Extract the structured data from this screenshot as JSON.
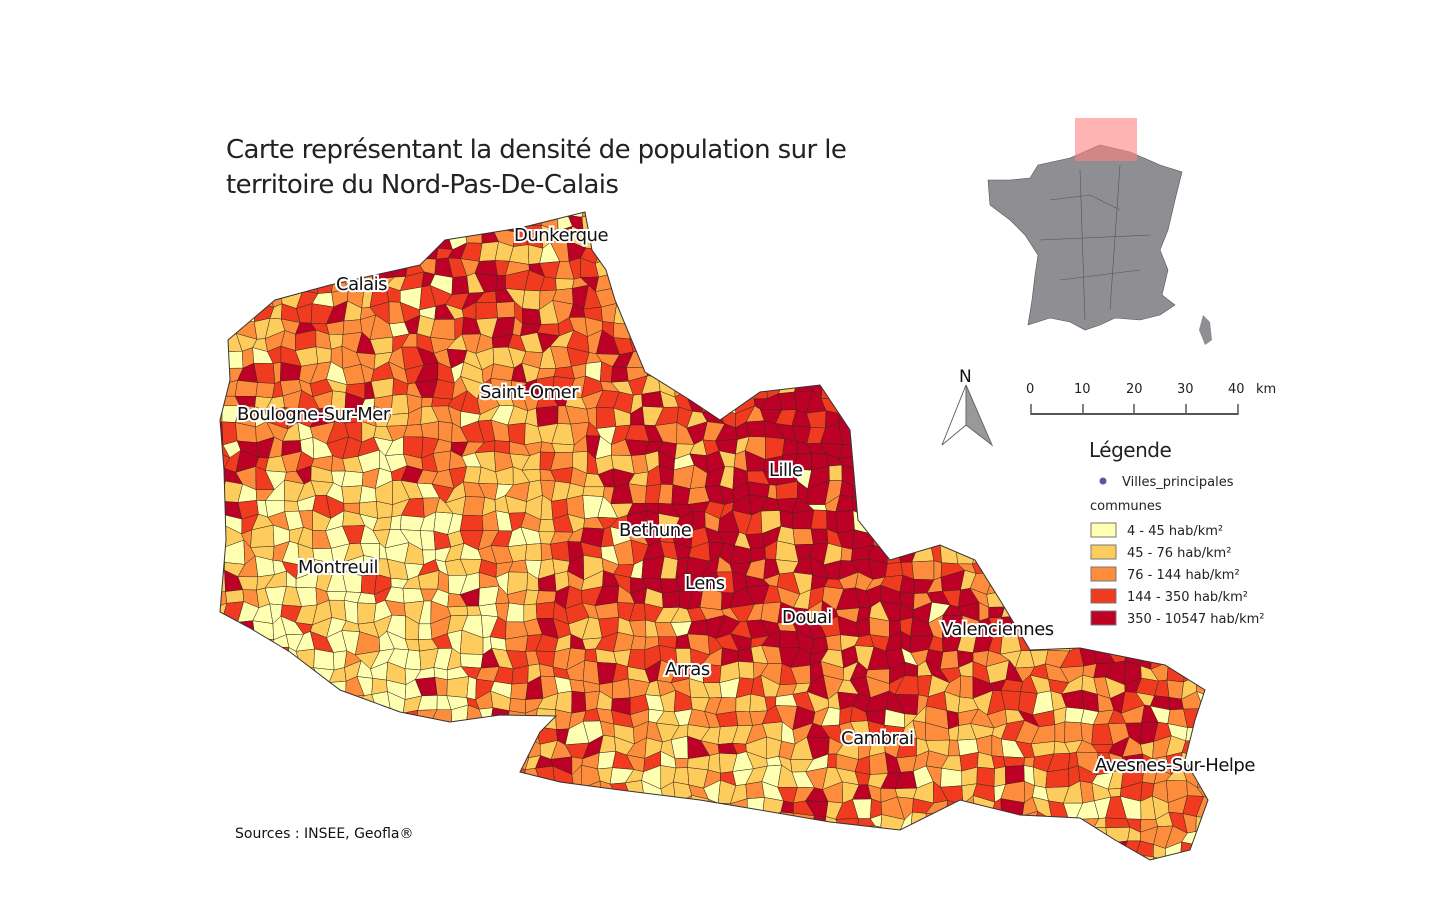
{
  "title": "Carte représentant la densité de population sur le territoire du Nord-Pas-De-Calais",
  "source": "Sources : INSEE, Geofla®",
  "cities": [
    "Dunkerque",
    "Calais",
    "Saint-Omer",
    "Boulogne-Sur-Mer",
    "Lille",
    "Bethune",
    "Montreuil",
    "Lens",
    "Douai",
    "Valenciennes",
    "Arras",
    "Cambrai",
    "Avesnes-Sur-Helpe"
  ],
  "north_arrow": "N",
  "scale_bar": {
    "ticks": [
      "0",
      "10",
      "20",
      "30",
      "40"
    ],
    "unit": "km"
  },
  "legend": {
    "title": "Légende",
    "points_layer": "Villes_principales",
    "points_color": "#6a4fa0",
    "polygon_layer": "communes",
    "classes": [
      {
        "label": "4 - 45 hab/km²",
        "color": "#ffffb2"
      },
      {
        "label": "45 - 76 hab/km²",
        "color": "#fecc5c"
      },
      {
        "label": "76 - 144 hab/km²",
        "color": "#fd8d3c"
      },
      {
        "label": "144 - 350 hab/km²",
        "color": "#f03b20"
      },
      {
        "label": "350 - 10547 hab/km²",
        "color": "#bd0026"
      }
    ]
  },
  "inset": {
    "highlight_color": "#ff8080",
    "land_color": "#8e8e93"
  }
}
